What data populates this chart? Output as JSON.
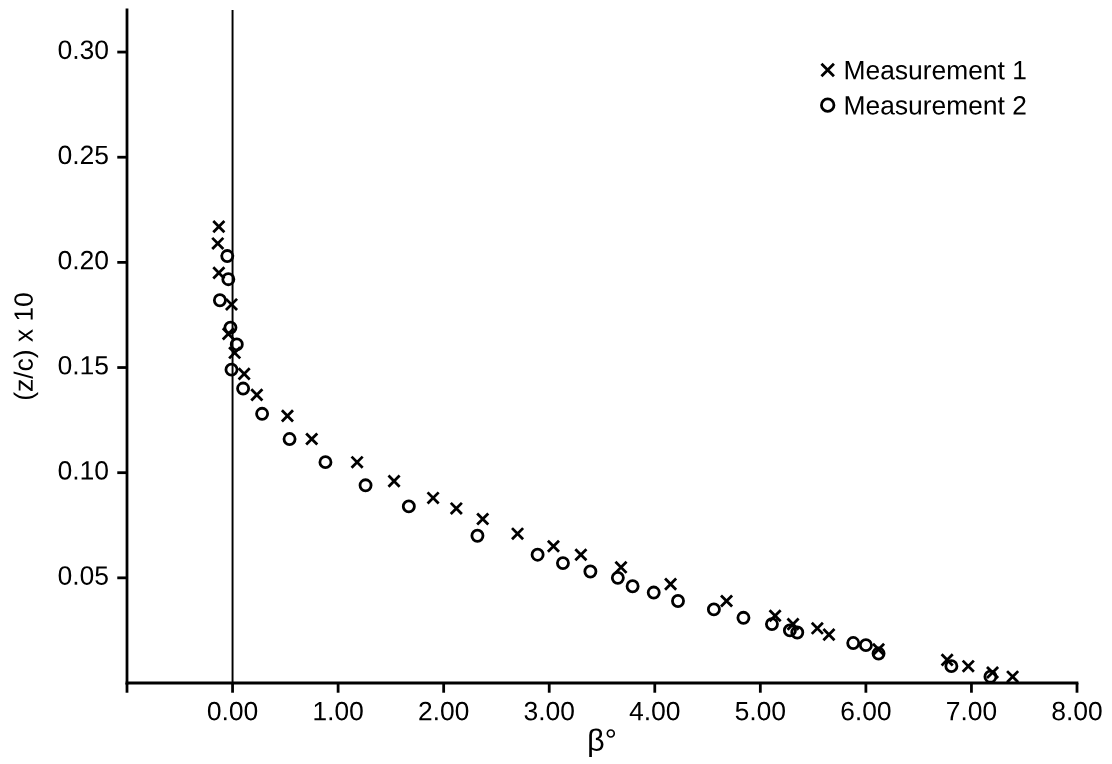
{
  "chart_data": {
    "type": "scatter",
    "xlabel": "β°",
    "ylabel": "(z/c) x 10",
    "xlim": [
      -1,
      8
    ],
    "ylim": [
      0,
      0.32
    ],
    "xticks": [
      {
        "value": -1,
        "label": null
      },
      {
        "value": 0,
        "label": "0.00"
      },
      {
        "value": 1,
        "label": "1.00"
      },
      {
        "value": 2,
        "label": "2.00"
      },
      {
        "value": 3,
        "label": "3.00"
      },
      {
        "value": 4,
        "label": "4.00"
      },
      {
        "value": 5,
        "label": "5.00"
      },
      {
        "value": 6,
        "label": "6.00"
      },
      {
        "value": 7,
        "label": "7.00"
      },
      {
        "value": 8,
        "label": "8.00"
      }
    ],
    "yticks": [
      {
        "value": 0.05,
        "label": "0.05"
      },
      {
        "value": 0.1,
        "label": "0.10"
      },
      {
        "value": 0.15,
        "label": "0.15"
      },
      {
        "value": 0.2,
        "label": "0.20"
      },
      {
        "value": 0.25,
        "label": "0.25"
      },
      {
        "value": 0.3,
        "label": "0.30"
      }
    ],
    "ref_lines": [
      {
        "axis": "x",
        "value": 0,
        "color": "#000000"
      }
    ],
    "grid": false,
    "legend": "top right",
    "series": [
      {
        "name": "Measurement 1",
        "color": "#000000",
        "marker": "cross",
        "x": [
          -0.13,
          -0.14,
          -0.13,
          -0.01,
          -0.04,
          0.02,
          0.11,
          0.23,
          0.52,
          0.75,
          1.18,
          1.53,
          1.9,
          2.12,
          2.37,
          2.7,
          3.04,
          3.3,
          3.68,
          4.15,
          4.68,
          5.14,
          5.31,
          5.54,
          5.65,
          6.12,
          6.77,
          6.97,
          7.2,
          7.39
        ],
        "values": [
          0.217,
          0.209,
          0.195,
          0.18,
          0.166,
          0.157,
          0.147,
          0.137,
          0.127,
          0.116,
          0.105,
          0.096,
          0.088,
          0.083,
          0.078,
          0.071,
          0.065,
          0.061,
          0.055,
          0.047,
          0.039,
          0.032,
          0.028,
          0.026,
          0.023,
          0.016,
          0.011,
          0.008,
          0.005,
          0.003
        ]
      },
      {
        "name": "Measurement 2",
        "color": "#000000",
        "marker": "circle",
        "x": [
          -0.05,
          -0.04,
          -0.12,
          -0.02,
          0.04,
          -0.01,
          0.1,
          0.28,
          0.54,
          0.88,
          1.26,
          1.67,
          2.32,
          2.89,
          3.13,
          3.39,
          3.65,
          3.79,
          3.99,
          4.22,
          4.56,
          4.84,
          5.11,
          5.28,
          5.35,
          5.88,
          6.0,
          6.12,
          6.81,
          7.18
        ],
        "values": [
          0.203,
          0.192,
          0.182,
          0.169,
          0.161,
          0.149,
          0.14,
          0.128,
          0.116,
          0.105,
          0.094,
          0.084,
          0.07,
          0.061,
          0.057,
          0.053,
          0.05,
          0.046,
          0.043,
          0.039,
          0.035,
          0.031,
          0.028,
          0.025,
          0.024,
          0.019,
          0.018,
          0.014,
          0.008,
          0.003
        ]
      }
    ]
  }
}
